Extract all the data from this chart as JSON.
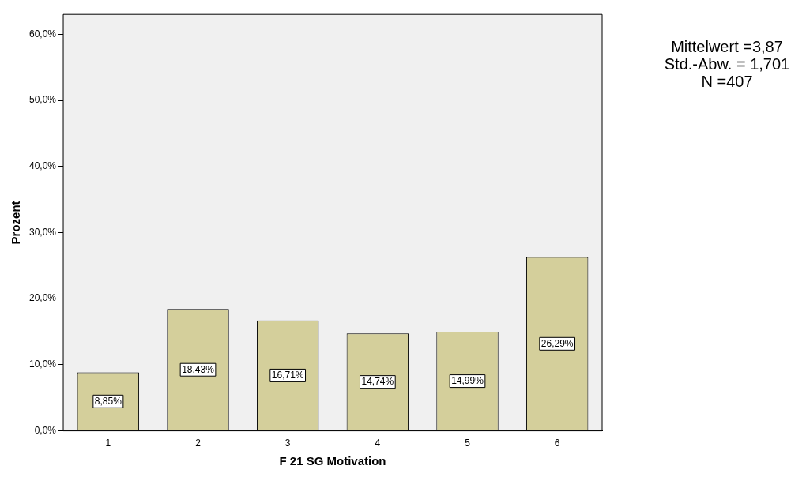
{
  "chart_data": {
    "type": "bar",
    "xlabel": "F 21 SG Motivation",
    "ylabel": "Prozent",
    "categories": [
      "1",
      "2",
      "3",
      "4",
      "5",
      "6"
    ],
    "values": [
      8.85,
      18.43,
      16.71,
      14.74,
      14.99,
      26.29
    ],
    "value_labels": [
      "8,85%",
      "18,43%",
      "16,71%",
      "14,74%",
      "14,99%",
      "26,29%"
    ],
    "color": "#d4cf9b",
    "ylim": [
      0,
      63
    ],
    "yticks": [
      {
        "value": 0,
        "label": "0,0%"
      },
      {
        "value": 10,
        "label": "10,0%"
      },
      {
        "value": 20,
        "label": "20,0%"
      },
      {
        "value": 30,
        "label": "30,0%"
      },
      {
        "value": 40,
        "label": "40,0%"
      },
      {
        "value": 50,
        "label": "50,0%"
      },
      {
        "value": 60,
        "label": "60,0%"
      }
    ],
    "grid": false,
    "legend": false,
    "annotations": [
      "Mittelwert =3,87",
      "Std.-Abw. = 1,701",
      "N =407"
    ]
  }
}
